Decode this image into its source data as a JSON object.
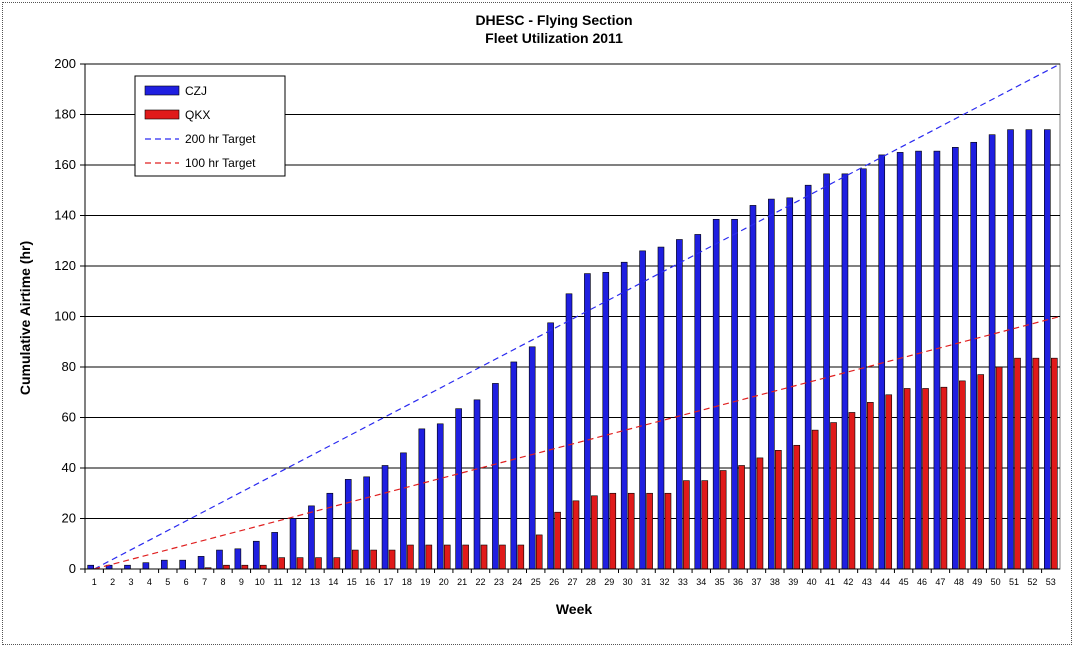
{
  "chart_data": {
    "type": "bar",
    "title": "DHESC - Flying Section",
    "subtitle": "Fleet Utilization 2011",
    "xlabel": "Week",
    "ylabel": "Cumulative Airtime (hr)",
    "ylim": [
      0,
      200
    ],
    "yticks": [
      0,
      20,
      40,
      60,
      80,
      100,
      120,
      140,
      160,
      180,
      200
    ],
    "grid": true,
    "legend_position": "top-left",
    "categories": [
      "1",
      "2",
      "3",
      "4",
      "5",
      "6",
      "7",
      "8",
      "9",
      "10",
      "11",
      "12",
      "13",
      "14",
      "15",
      "16",
      "17",
      "18",
      "19",
      "20",
      "21",
      "22",
      "23",
      "24",
      "25",
      "26",
      "27",
      "28",
      "29",
      "30",
      "31",
      "32",
      "33",
      "34",
      "35",
      "36",
      "37",
      "38",
      "39",
      "40",
      "41",
      "42",
      "43",
      "44",
      "45",
      "46",
      "47",
      "48",
      "49",
      "50",
      "51",
      "52",
      "53"
    ],
    "series": [
      {
        "name": "CZJ",
        "kind": "bar",
        "color": "#1f1fe0",
        "values": [
          1.5,
          1.5,
          1.5,
          2.5,
          3.5,
          3.5,
          5,
          7.5,
          8,
          11,
          14.5,
          20,
          25,
          30,
          35.5,
          36.5,
          41,
          46,
          55.5,
          57.5,
          63.5,
          67,
          73.5,
          82,
          88,
          97.5,
          109,
          117,
          117.5,
          121.5,
          126,
          127.5,
          130.5,
          132.5,
          138.5,
          138.5,
          144,
          146.5,
          147,
          152,
          156.5,
          156.5,
          158.5,
          164,
          165,
          165.5,
          165.5,
          167,
          169,
          172,
          174,
          174,
          174
        ]
      },
      {
        "name": "QKX",
        "kind": "bar",
        "color": "#e01a1a",
        "values": [
          0,
          0,
          0,
          0,
          0,
          0,
          0.5,
          1.5,
          1.5,
          1.5,
          4.5,
          4.5,
          4.5,
          4.5,
          7.5,
          7.5,
          7.5,
          9.5,
          9.5,
          9.5,
          9.5,
          9.5,
          9.5,
          9.5,
          13.5,
          22.5,
          27,
          29,
          30,
          30,
          30,
          30,
          35,
          35,
          39,
          41,
          44,
          47,
          49,
          55,
          58,
          62,
          66,
          69,
          71.5,
          71.5,
          72,
          74.5,
          77,
          80,
          83.5,
          83.5,
          83.5
        ]
      },
      {
        "name": "200 hr Target",
        "kind": "line",
        "style": "dashed",
        "color": "#2a2af0",
        "x": [
          1,
          53
        ],
        "values": [
          0,
          200
        ]
      },
      {
        "name": "100 hr Target",
        "kind": "line",
        "style": "dashed",
        "color": "#e02020",
        "x": [
          1,
          53
        ],
        "values": [
          0,
          100
        ]
      }
    ]
  }
}
